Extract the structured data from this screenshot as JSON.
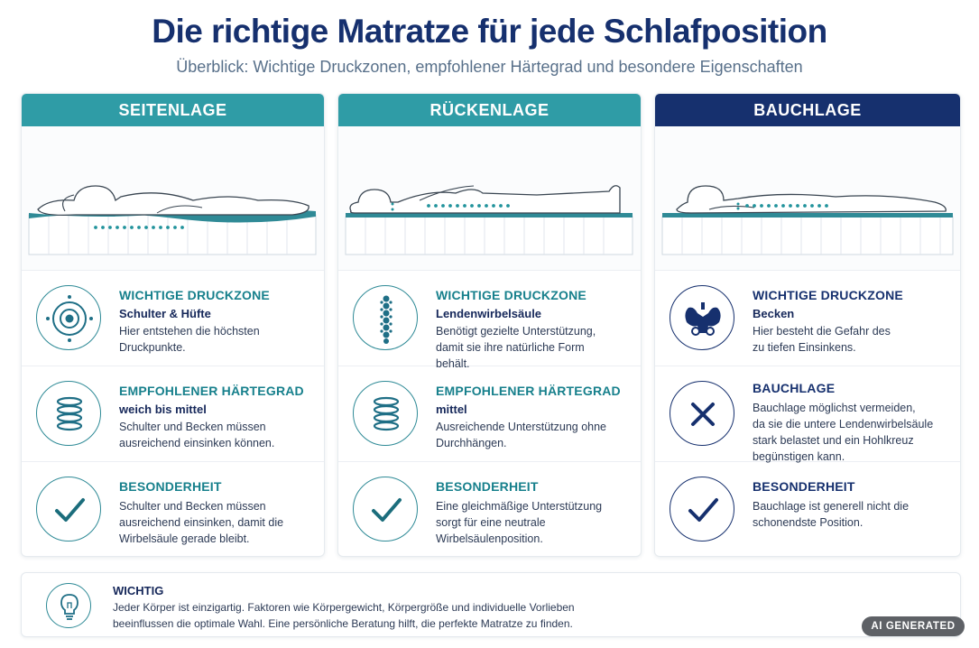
{
  "header": {
    "title": "Die richtige Matratze für jede Schlafposition",
    "subtitle": "Überblick: Wichtige Druckzonen, empfohlener Härtegrad und besondere Eigenschaften"
  },
  "colors": {
    "teal": "#2f9ca6",
    "navy": "#16306e",
    "accent": "#17808c"
  },
  "columns": [
    {
      "title": "SEITENLAGE",
      "header_color": "#2f9ca6",
      "icons": [
        "target-icon",
        "spring-icon",
        "checkmark-icon"
      ],
      "sections": [
        {
          "heading": "WICHTIGE DRUCKZONE",
          "value": "Schulter & Hüfte",
          "desc1": "Hier entstehen die höchsten",
          "desc2": "Druckpunkte.",
          "desc3": ""
        },
        {
          "heading": "EMPFOHLENER HÄRTEGRAD",
          "value": "weich bis mittel",
          "desc1": "Schulter und Becken müssen",
          "desc2": "ausreichend einsinken können.",
          "desc3": ""
        },
        {
          "heading": "BESONDERHEIT",
          "value": "",
          "desc1": "Schulter und Becken müssen",
          "desc2": "ausreichend einsinken, damit die",
          "desc3": "Wirbelsäule gerade bleibt."
        }
      ]
    },
    {
      "title": "RÜCKENLAGE",
      "header_color": "#2f9ca6",
      "icons": [
        "spine-icon",
        "spring-icon",
        "checkmark-icon"
      ],
      "sections": [
        {
          "heading": "WICHTIGE DRUCKZONE",
          "value": "Lendenwirbelsäule",
          "desc1": "Benötigt gezielte Unterstützung,",
          "desc2": "damit sie ihre natürliche Form",
          "desc3": "behält."
        },
        {
          "heading": "EMPFOHLENER HÄRTEGRAD",
          "value": "mittel",
          "desc1": "Ausreichende Unterstützung ohne",
          "desc2": "Durchhängen.",
          "desc3": ""
        },
        {
          "heading": "BESONDERHEIT",
          "value": "",
          "desc1": "Eine gleichmäßige Unterstützung",
          "desc2": "sorgt für eine neutrale",
          "desc3": "Wirbelsäulenposition."
        }
      ]
    },
    {
      "title": "BAUCHLAGE",
      "header_color": "#16306e",
      "icons": [
        "pelvis-icon",
        "cross-icon",
        "checkmark-icon"
      ],
      "sections": [
        {
          "heading": "WICHTIGE DRUCKZONE",
          "value": "Becken",
          "desc1": "Hier besteht die Gefahr des",
          "desc2": "zu tiefen Einsinkens.",
          "desc3": ""
        },
        {
          "heading": "BAUCHLAGE",
          "value": "",
          "desc1": "Bauchlage möglichst vermeiden,",
          "desc2": "da sie die untere Lendenwirbelsäule",
          "desc3": "stark belastet und ein Hohlkreuz",
          "desc4": "begünstigen kann."
        },
        {
          "heading": "BESONDERHEIT",
          "value": "",
          "desc1": "Bauchlage ist generell nicht die",
          "desc2": "schonendste Position.",
          "desc3": ""
        }
      ]
    }
  ],
  "note": {
    "icon": "lightbulb-icon",
    "title": "WICHTIG",
    "line1": "Jeder Körper ist einzigartig. Faktoren wie Körpergewicht, Körpergröße und individuelle Vorlieben",
    "line2": "beeinflussen die optimale Wahl. Eine persönliche Beratung hilft, die perfekte Matratze zu finden."
  },
  "badge": {
    "label": "AI GENERATED"
  }
}
